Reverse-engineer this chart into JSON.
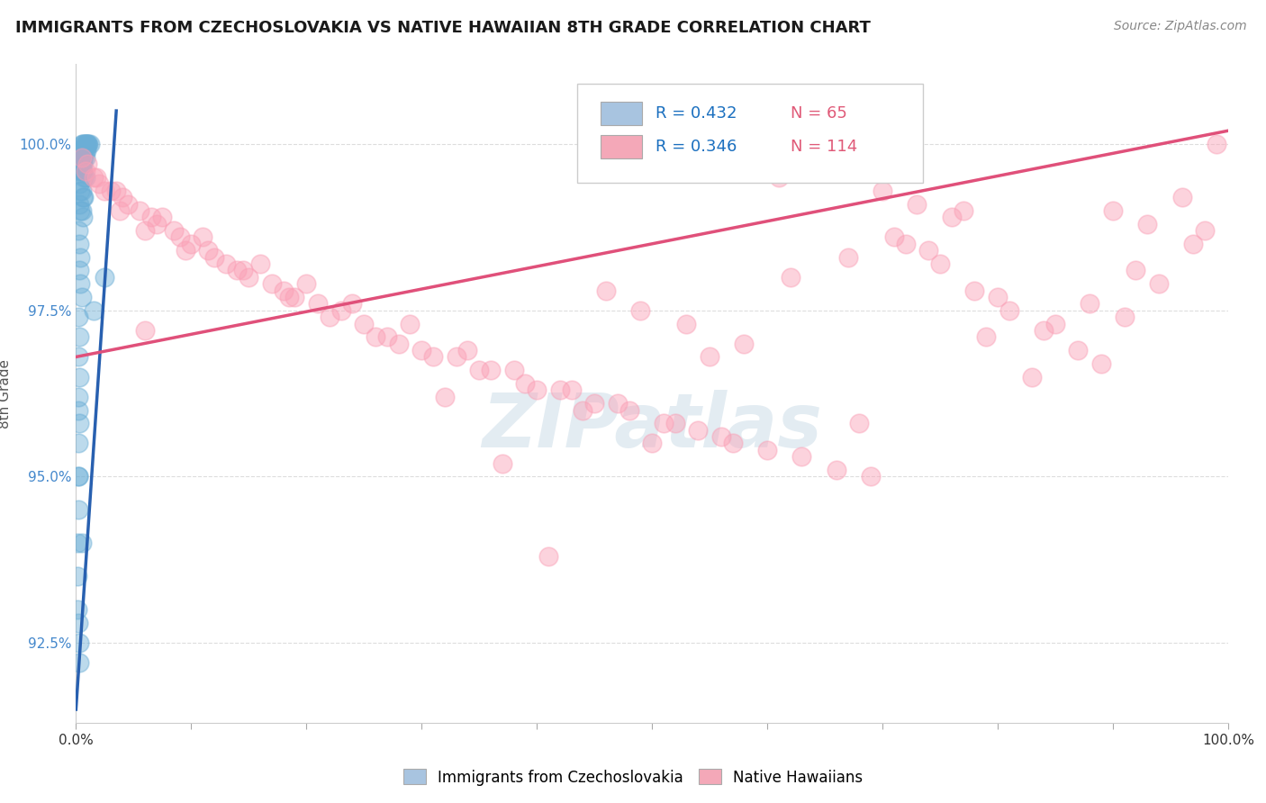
{
  "title": "IMMIGRANTS FROM CZECHOSLOVAKIA VS NATIVE HAWAIIAN 8TH GRADE CORRELATION CHART",
  "source": "Source: ZipAtlas.com",
  "ylabel": "8th Grade",
  "yticks": [
    92.5,
    95.0,
    97.5,
    100.0
  ],
  "ytick_labels": [
    "92.5%",
    "95.0%",
    "97.5%",
    "100.0%"
  ],
  "xmin": 0.0,
  "xmax": 100.0,
  "ymin": 91.3,
  "ymax": 101.2,
  "legend1_color": "#a8c4e0",
  "legend2_color": "#f4a8b8",
  "series1_color": "#6baed6",
  "series2_color": "#fa9fb5",
  "trendline1_color": "#2860b0",
  "trendline2_color": "#e0507a",
  "background_color": "#ffffff",
  "grid_color": "#dddddd",
  "legend_R_color": "#1a6fbf",
  "legend_N_color": "#e05a78",
  "blue_x": [
    0.5,
    0.7,
    0.8,
    0.9,
    1.0,
    1.1,
    1.2,
    0.6,
    0.8,
    1.0,
    0.4,
    0.5,
    0.6,
    0.7,
    0.8,
    0.9,
    0.5,
    0.6,
    0.7,
    0.8,
    0.3,
    0.4,
    0.5,
    0.6,
    0.4,
    0.5,
    0.6,
    0.7,
    0.8,
    0.3,
    0.4,
    0.5,
    0.6,
    0.7,
    0.3,
    0.4,
    0.5,
    0.6,
    0.2,
    0.3,
    0.4,
    0.3,
    0.4,
    0.5,
    0.2,
    0.3,
    0.2,
    0.3,
    0.2,
    0.3,
    0.2,
    0.2,
    0.2,
    0.15,
    0.1,
    0.15,
    0.2,
    0.25,
    0.3,
    2.5,
    0.2,
    1.5,
    0.2,
    0.5
  ],
  "blue_y": [
    100.0,
    100.0,
    100.0,
    100.0,
    100.0,
    100.0,
    100.0,
    100.0,
    100.0,
    100.0,
    99.9,
    99.9,
    99.9,
    99.9,
    99.9,
    99.9,
    99.8,
    99.8,
    99.8,
    99.8,
    99.7,
    99.7,
    99.7,
    99.7,
    99.6,
    99.6,
    99.6,
    99.5,
    99.5,
    99.4,
    99.3,
    99.3,
    99.2,
    99.2,
    99.1,
    99.0,
    99.0,
    98.9,
    98.7,
    98.5,
    98.3,
    98.1,
    97.9,
    97.7,
    97.4,
    97.1,
    96.8,
    96.5,
    96.2,
    95.8,
    95.5,
    95.0,
    94.5,
    94.0,
    93.5,
    93.0,
    92.8,
    92.5,
    92.2,
    98.0,
    96.0,
    97.5,
    95.0,
    94.0
  ],
  "pink_x": [
    1.5,
    3.0,
    4.0,
    5.5,
    7.0,
    8.5,
    10.0,
    11.5,
    13.0,
    15.0,
    17.0,
    19.0,
    21.0,
    23.0,
    25.0,
    27.0,
    30.0,
    33.0,
    36.0,
    39.0,
    42.0,
    45.0,
    48.0,
    51.0,
    54.0,
    57.0,
    60.0,
    63.0,
    66.0,
    69.0,
    72.0,
    75.0,
    78.0,
    81.0,
    84.0,
    87.0,
    90.0,
    93.0,
    96.0,
    99.0,
    2.0,
    4.5,
    6.5,
    9.0,
    12.0,
    14.5,
    18.0,
    22.0,
    26.0,
    31.0,
    35.0,
    40.0,
    44.0,
    49.0,
    53.0,
    58.0,
    62.0,
    67.0,
    71.0,
    76.0,
    80.0,
    85.0,
    89.0,
    94.0,
    98.0,
    3.5,
    7.5,
    11.0,
    16.0,
    20.0,
    24.0,
    29.0,
    34.0,
    38.0,
    43.0,
    47.0,
    52.0,
    56.0,
    61.0,
    65.0,
    70.0,
    74.0,
    79.0,
    83.0,
    88.0,
    92.0,
    97.0,
    6.0,
    55.0,
    37.0,
    73.0,
    46.0,
    91.0,
    68.0,
    28.0,
    0.5,
    1.0,
    1.8,
    2.5,
    3.8,
    6.0,
    9.5,
    14.0,
    18.5,
    0.8,
    50.0,
    32.0,
    77.0,
    41.0
  ],
  "pink_y": [
    99.5,
    99.3,
    99.2,
    99.0,
    98.8,
    98.7,
    98.5,
    98.4,
    98.2,
    98.0,
    97.9,
    97.7,
    97.6,
    97.5,
    97.3,
    97.1,
    96.9,
    96.8,
    96.6,
    96.4,
    96.3,
    96.1,
    96.0,
    95.8,
    95.7,
    95.5,
    95.4,
    95.3,
    95.1,
    95.0,
    98.5,
    98.2,
    97.8,
    97.5,
    97.2,
    96.9,
    99.0,
    98.8,
    99.2,
    100.0,
    99.4,
    99.1,
    98.9,
    98.6,
    98.3,
    98.1,
    97.8,
    97.4,
    97.1,
    96.8,
    96.6,
    96.3,
    96.0,
    97.5,
    97.3,
    97.0,
    98.0,
    98.3,
    98.6,
    98.9,
    97.7,
    97.3,
    96.7,
    97.9,
    98.7,
    99.3,
    98.9,
    98.6,
    98.2,
    97.9,
    97.6,
    97.3,
    96.9,
    96.6,
    96.3,
    96.1,
    95.8,
    95.6,
    99.5,
    99.7,
    99.3,
    98.4,
    97.1,
    96.5,
    97.6,
    98.1,
    98.5,
    97.2,
    96.8,
    95.2,
    99.1,
    97.8,
    97.4,
    95.8,
    97.0,
    99.8,
    99.7,
    99.5,
    99.3,
    99.0,
    98.7,
    98.4,
    98.1,
    97.7,
    99.6,
    95.5,
    96.2,
    99.0,
    93.8
  ],
  "blue_trend_x": [
    0.0,
    3.5
  ],
  "blue_trend_y": [
    91.5,
    100.5
  ],
  "pink_trend_x": [
    0.0,
    100.0
  ],
  "pink_trend_y": [
    96.8,
    100.2
  ],
  "xtick_positions": [
    0,
    10,
    20,
    30,
    40,
    50,
    60,
    70,
    80,
    90,
    100
  ],
  "series1_name": "Immigrants from Czechoslovakia",
  "series2_name": "Native Hawaiians"
}
